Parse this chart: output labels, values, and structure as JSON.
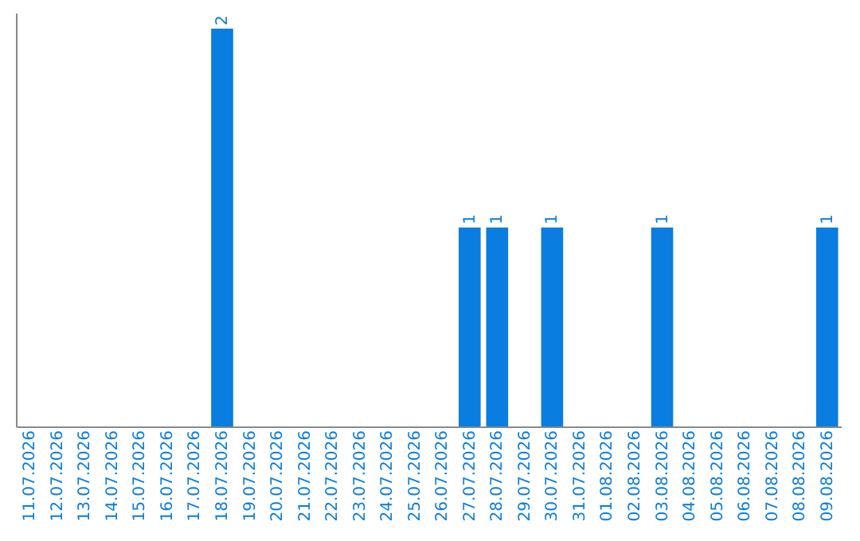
{
  "chart_data": {
    "type": "bar",
    "categories": [
      "11.07.2026",
      "12.07.2026",
      "13.07.2026",
      "14.07.2026",
      "15.07.2026",
      "16.07.2026",
      "17.07.2026",
      "18.07.2026",
      "19.07.2026",
      "20.07.2026",
      "21.07.2026",
      "22.07.2026",
      "23.07.2026",
      "24.07.2026",
      "25.07.2026",
      "26.07.2026",
      "27.07.2026",
      "28.07.2026",
      "29.07.2026",
      "30.07.2026",
      "31.07.2026",
      "01.08.2026",
      "02.08.2026",
      "03.08.2026",
      "04.08.2026",
      "05.08.2026",
      "06.08.2026",
      "07.08.2026",
      "08.08.2026",
      "09.08.2026"
    ],
    "values": [
      0,
      0,
      0,
      0,
      0,
      0,
      0,
      2,
      0,
      0,
      0,
      0,
      0,
      0,
      0,
      0,
      1,
      1,
      0,
      1,
      0,
      0,
      0,
      1,
      0,
      0,
      0,
      0,
      0,
      1
    ],
    "color": "#0a7de0",
    "ylim": [
      0,
      2.08
    ],
    "tick_labels": "x",
    "value_labels": [
      null,
      null,
      null,
      null,
      null,
      null,
      null,
      "2",
      null,
      null,
      null,
      null,
      null,
      null,
      null,
      null,
      "1",
      "1",
      null,
      "1",
      null,
      null,
      null,
      "1",
      null,
      null,
      null,
      null,
      null,
      "1"
    ]
  }
}
